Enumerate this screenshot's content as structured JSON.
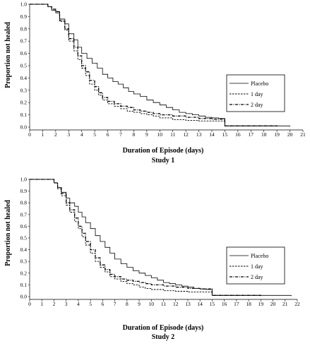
{
  "chart_data": [
    {
      "type": "line",
      "ylabel": "Proportion not healed",
      "xlabel": "Duration of Episode (days)",
      "subtitle": "Study 1",
      "xlim": [
        0,
        21
      ],
      "ylim": [
        0,
        1.0
      ],
      "x_ticks": [
        "0",
        "1",
        "2",
        "3",
        "4",
        "5",
        "6",
        "7",
        "8",
        "9",
        "10",
        "11",
        "12",
        "13",
        "14",
        "15",
        "16",
        "17",
        "18",
        "19",
        "20",
        "21"
      ],
      "y_ticks": [
        "0.0",
        "0.1",
        "0.2",
        "0.3",
        "0.4",
        "0.5",
        "0.6",
        "0.7",
        "0.8",
        "0.9",
        "1.0"
      ],
      "legend": {
        "position": "right",
        "entries": [
          "Placebo",
          "1 day",
          "2 day"
        ]
      },
      "series": [
        {
          "name": "Placebo",
          "style": "solid",
          "points": [
            [
              0,
              1.0
            ],
            [
              1.0,
              1.0
            ],
            [
              1.4,
              0.98
            ],
            [
              1.7,
              0.95
            ],
            [
              2.0,
              0.93
            ],
            [
              2.3,
              0.88
            ],
            [
              2.7,
              0.84
            ],
            [
              3.0,
              0.76
            ],
            [
              3.4,
              0.71
            ],
            [
              3.7,
              0.65
            ],
            [
              4.0,
              0.6
            ],
            [
              4.4,
              0.56
            ],
            [
              4.8,
              0.52
            ],
            [
              5.2,
              0.48
            ],
            [
              5.6,
              0.43
            ],
            [
              6.0,
              0.4
            ],
            [
              6.4,
              0.37
            ],
            [
              6.8,
              0.35
            ],
            [
              7.2,
              0.32
            ],
            [
              7.6,
              0.29
            ],
            [
              8.0,
              0.27
            ],
            [
              8.5,
              0.25
            ],
            [
              9.0,
              0.22
            ],
            [
              9.5,
              0.2
            ],
            [
              10.0,
              0.18
            ],
            [
              10.5,
              0.16
            ],
            [
              11.0,
              0.14
            ],
            [
              11.5,
              0.12
            ],
            [
              12.0,
              0.11
            ],
            [
              12.5,
              0.1
            ],
            [
              13.0,
              0.09
            ],
            [
              13.5,
              0.08
            ],
            [
              14.0,
              0.075
            ],
            [
              14.5,
              0.07
            ],
            [
              15.0,
              0.01
            ],
            [
              20.0,
              0.005
            ]
          ]
        },
        {
          "name": "1 day",
          "style": "dashed",
          "points": [
            [
              0,
              1.0
            ],
            [
              1.0,
              1.0
            ],
            [
              1.4,
              0.98
            ],
            [
              1.7,
              0.96
            ],
            [
              2.0,
              0.94
            ],
            [
              2.3,
              0.86
            ],
            [
              2.7,
              0.79
            ],
            [
              3.0,
              0.7
            ],
            [
              3.4,
              0.62
            ],
            [
              3.7,
              0.55
            ],
            [
              4.0,
              0.48
            ],
            [
              4.3,
              0.42
            ],
            [
              4.6,
              0.35
            ],
            [
              5.0,
              0.3
            ],
            [
              5.3,
              0.26
            ],
            [
              5.6,
              0.22
            ],
            [
              6.0,
              0.19
            ],
            [
              6.5,
              0.17
            ],
            [
              7.0,
              0.15
            ],
            [
              7.5,
              0.13
            ],
            [
              8.0,
              0.12
            ],
            [
              8.5,
              0.11
            ],
            [
              9.0,
              0.1
            ],
            [
              9.5,
              0.09
            ],
            [
              10.0,
              0.075
            ],
            [
              11.0,
              0.06
            ],
            [
              12.0,
              0.055
            ],
            [
              13.0,
              0.05
            ],
            [
              14.0,
              0.05
            ],
            [
              15.0,
              0.01
            ],
            [
              19.0,
              0.005
            ]
          ]
        },
        {
          "name": "2 day",
          "style": "dash-dot",
          "points": [
            [
              0,
              1.0
            ],
            [
              1.0,
              1.0
            ],
            [
              1.4,
              0.98
            ],
            [
              1.7,
              0.96
            ],
            [
              2.0,
              0.94
            ],
            [
              2.3,
              0.87
            ],
            [
              2.7,
              0.8
            ],
            [
              3.0,
              0.72
            ],
            [
              3.4,
              0.65
            ],
            [
              3.7,
              0.58
            ],
            [
              4.0,
              0.5
            ],
            [
              4.3,
              0.45
            ],
            [
              4.6,
              0.38
            ],
            [
              5.0,
              0.33
            ],
            [
              5.3,
              0.28
            ],
            [
              5.6,
              0.24
            ],
            [
              6.0,
              0.21
            ],
            [
              6.5,
              0.19
            ],
            [
              7.0,
              0.17
            ],
            [
              7.5,
              0.16
            ],
            [
              8.0,
              0.14
            ],
            [
              8.5,
              0.13
            ],
            [
              9.0,
              0.12
            ],
            [
              9.5,
              0.11
            ],
            [
              10.0,
              0.1
            ],
            [
              11.0,
              0.09
            ],
            [
              12.0,
              0.08
            ],
            [
              13.0,
              0.07
            ],
            [
              14.0,
              0.065
            ],
            [
              15.0,
              0.01
            ],
            [
              19.0,
              0.005
            ]
          ]
        }
      ]
    },
    {
      "type": "line",
      "ylabel": "Proportion not healed",
      "xlabel": "Duration of Episode (days)",
      "subtitle": "Study 2",
      "xlim": [
        0,
        22
      ],
      "ylim": [
        0,
        1.0
      ],
      "x_ticks": [
        "0",
        "1",
        "2",
        "3",
        "4",
        "5",
        "6",
        "7",
        "8",
        "9",
        "10",
        "11",
        "12",
        "13",
        "14",
        "15",
        "16",
        "17",
        "18",
        "19",
        "20",
        "21",
        "22"
      ],
      "y_ticks": [
        "0.0",
        "0.1",
        "0.2",
        "0.3",
        "0.4",
        "0.5",
        "0.6",
        "0.7",
        "0.8",
        "0.9",
        "1.0"
      ],
      "legend": {
        "position": "right",
        "entries": [
          "Placebo",
          "1 day",
          "2 day"
        ]
      },
      "series": [
        {
          "name": "Placebo",
          "style": "solid",
          "points": [
            [
              0,
              1.0
            ],
            [
              1.5,
              1.0
            ],
            [
              2.0,
              0.97
            ],
            [
              2.3,
              0.93
            ],
            [
              2.6,
              0.89
            ],
            [
              3.0,
              0.84
            ],
            [
              3.3,
              0.8
            ],
            [
              3.7,
              0.77
            ],
            [
              4.0,
              0.72
            ],
            [
              4.3,
              0.68
            ],
            [
              4.6,
              0.63
            ],
            [
              5.0,
              0.58
            ],
            [
              5.4,
              0.52
            ],
            [
              5.8,
              0.47
            ],
            [
              6.2,
              0.42
            ],
            [
              6.6,
              0.37
            ],
            [
              7.0,
              0.32
            ],
            [
              7.5,
              0.28
            ],
            [
              8.0,
              0.25
            ],
            [
              8.5,
              0.22
            ],
            [
              9.0,
              0.2
            ],
            [
              9.5,
              0.18
            ],
            [
              10.0,
              0.16
            ],
            [
              10.5,
              0.14
            ],
            [
              11.0,
              0.12
            ],
            [
              11.5,
              0.11
            ],
            [
              12.0,
              0.1
            ],
            [
              12.5,
              0.09
            ],
            [
              13.0,
              0.08
            ],
            [
              13.5,
              0.07
            ],
            [
              14.0,
              0.065
            ],
            [
              14.5,
              0.06
            ],
            [
              15.0,
              0.01
            ],
            [
              21.5,
              0.005
            ]
          ]
        },
        {
          "name": "1 day",
          "style": "dashed",
          "points": [
            [
              0,
              1.0
            ],
            [
              1.5,
              1.0
            ],
            [
              2.0,
              0.97
            ],
            [
              2.3,
              0.92
            ],
            [
              2.6,
              0.86
            ],
            [
              3.0,
              0.78
            ],
            [
              3.3,
              0.72
            ],
            [
              3.7,
              0.64
            ],
            [
              4.0,
              0.58
            ],
            [
              4.3,
              0.51
            ],
            [
              4.6,
              0.44
            ],
            [
              5.0,
              0.37
            ],
            [
              5.4,
              0.3
            ],
            [
              5.8,
              0.25
            ],
            [
              6.2,
              0.21
            ],
            [
              6.6,
              0.17
            ],
            [
              7.0,
              0.15
            ],
            [
              7.5,
              0.13
            ],
            [
              8.0,
              0.11
            ],
            [
              8.5,
              0.1
            ],
            [
              9.0,
              0.08
            ],
            [
              9.5,
              0.07
            ],
            [
              10.0,
              0.06
            ],
            [
              11.0,
              0.05
            ],
            [
              12.0,
              0.045
            ],
            [
              13.0,
              0.04
            ],
            [
              14.0,
              0.04
            ],
            [
              15.0,
              0.01
            ],
            [
              19.0,
              0.005
            ]
          ]
        },
        {
          "name": "2 day",
          "style": "dash-dot",
          "points": [
            [
              0,
              1.0
            ],
            [
              1.5,
              1.0
            ],
            [
              2.0,
              0.97
            ],
            [
              2.3,
              0.93
            ],
            [
              2.6,
              0.88
            ],
            [
              3.0,
              0.8
            ],
            [
              3.3,
              0.74
            ],
            [
              3.7,
              0.67
            ],
            [
              4.0,
              0.6
            ],
            [
              4.3,
              0.54
            ],
            [
              4.6,
              0.47
            ],
            [
              5.0,
              0.4
            ],
            [
              5.4,
              0.33
            ],
            [
              5.8,
              0.27
            ],
            [
              6.2,
              0.23
            ],
            [
              6.6,
              0.19
            ],
            [
              7.0,
              0.17
            ],
            [
              7.5,
              0.15
            ],
            [
              8.0,
              0.14
            ],
            [
              8.5,
              0.13
            ],
            [
              9.0,
              0.12
            ],
            [
              9.5,
              0.11
            ],
            [
              10.0,
              0.1
            ],
            [
              11.0,
              0.09
            ],
            [
              12.0,
              0.08
            ],
            [
              13.0,
              0.07
            ],
            [
              14.0,
              0.065
            ],
            [
              15.0,
              0.01
            ],
            [
              19.0,
              0.005
            ]
          ]
        }
      ]
    }
  ]
}
